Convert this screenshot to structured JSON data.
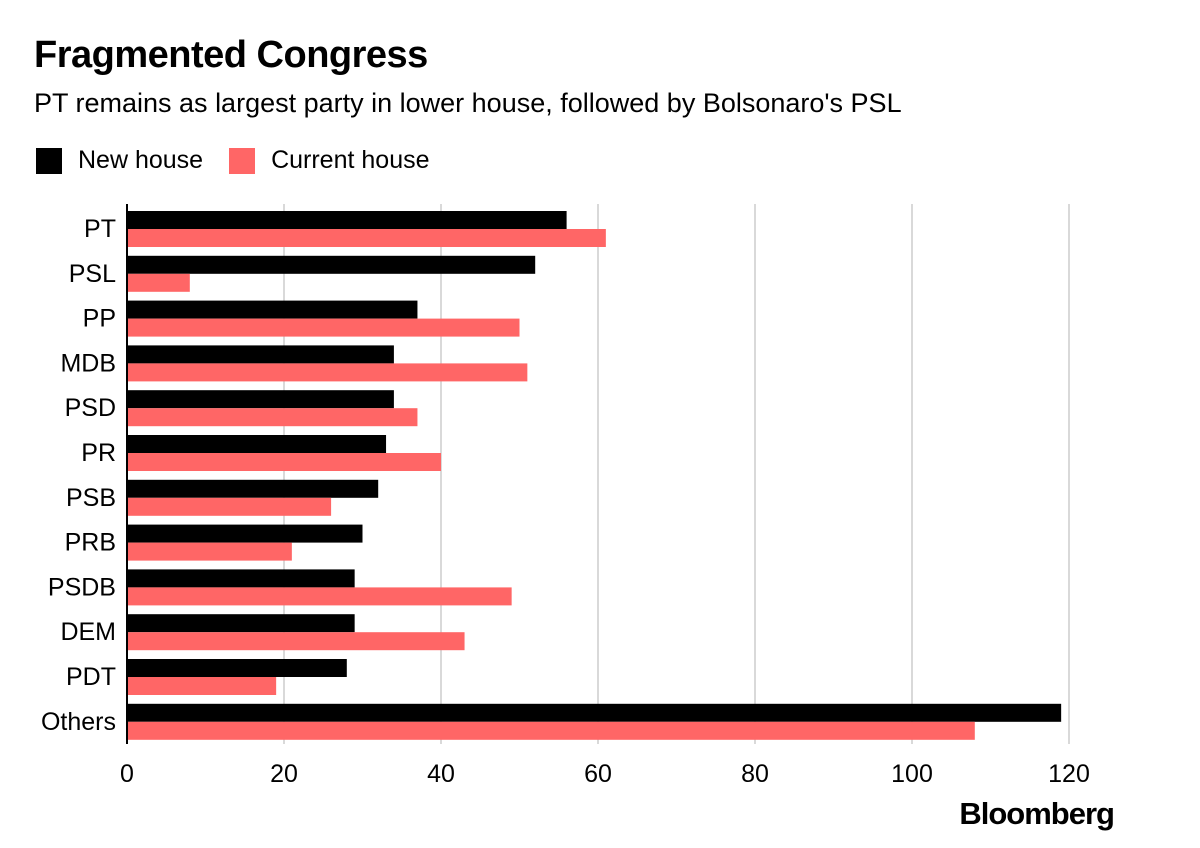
{
  "chart_data": {
    "type": "bar",
    "orientation": "horizontal",
    "title": "Fragmented Congress",
    "subtitle": "PT remains as largest party in lower house, followed by Bolsonaro's PSL",
    "categories": [
      "PT",
      "PSL",
      "PP",
      "MDB",
      "PSD",
      "PR",
      "PSB",
      "PRB",
      "PSDB",
      "DEM",
      "PDT",
      "Others"
    ],
    "series": [
      {
        "name": "New house",
        "color": "#000000",
        "values": [
          56,
          52,
          37,
          34,
          34,
          33,
          32,
          30,
          29,
          29,
          28,
          119
        ]
      },
      {
        "name": "Current house",
        "color": "#ff6666",
        "values": [
          61,
          8,
          50,
          51,
          37,
          40,
          26,
          21,
          49,
          43,
          19,
          108
        ]
      }
    ],
    "xlim": [
      0,
      120
    ],
    "xticks": [
      "0",
      "20",
      "40",
      "60",
      "80",
      "100",
      "120"
    ],
    "grid": true,
    "legend_position": "top-left"
  },
  "source": "Bloomberg"
}
